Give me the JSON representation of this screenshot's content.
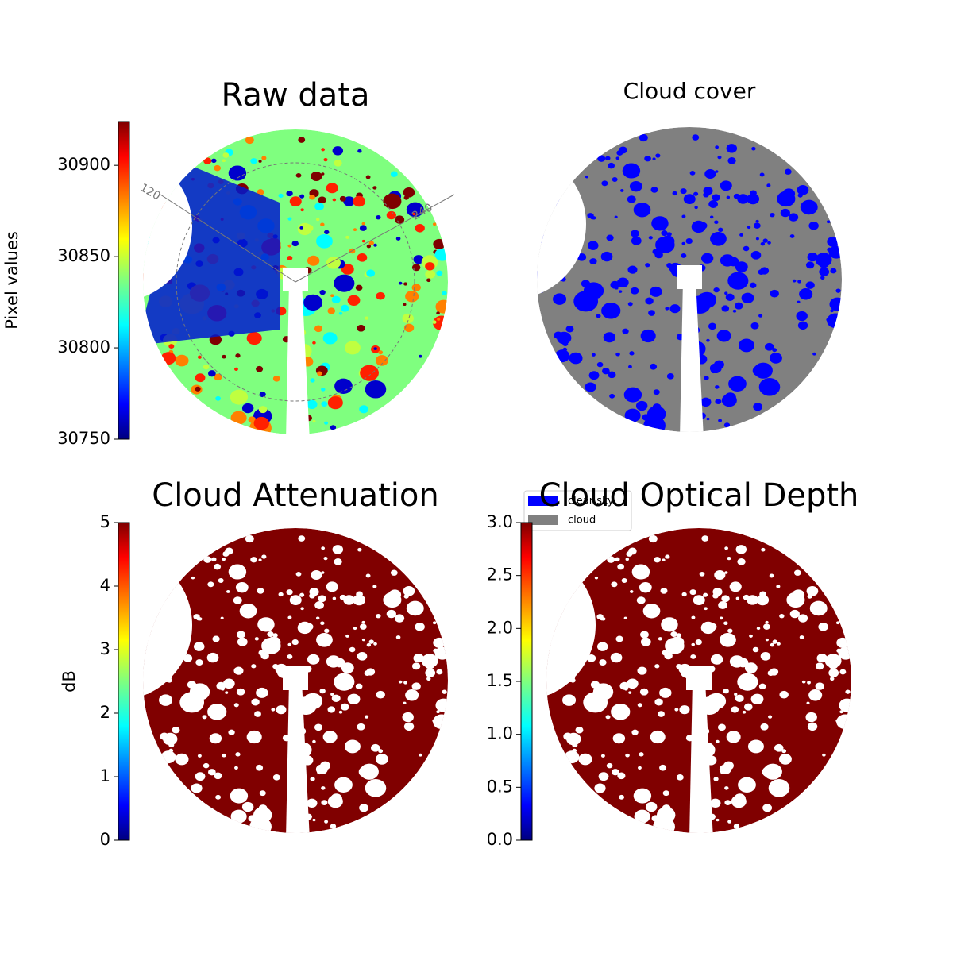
{
  "chart_data": [
    {
      "type": "image",
      "title": "Raw data",
      "colormap": "jet",
      "colorbar": {
        "label": "Pixel values",
        "lim": [
          30750,
          30924
        ],
        "ticks": [
          30750,
          30800,
          30850,
          30900
        ]
      },
      "annotations": [
        "120",
        "240"
      ]
    },
    {
      "type": "image",
      "title": "Cloud cover",
      "colormap": "binary",
      "legend": {
        "entries": [
          {
            "name": "clear sky",
            "color": "#0000ff"
          },
          {
            "name": "cloud",
            "color": "#808080"
          }
        ]
      }
    },
    {
      "type": "image",
      "title": "Cloud Attenuation",
      "colormap": "jet",
      "colorbar": {
        "label": "dB",
        "lim": [
          0,
          5
        ],
        "ticks": [
          0,
          1,
          2,
          3,
          4,
          5
        ]
      }
    },
    {
      "type": "image",
      "title": "Cloud Optical Depth",
      "colormap": "jet",
      "colorbar": {
        "lim": [
          0,
          3
        ],
        "ticks": [
          {
            "value": 0,
            "label": "0.0"
          },
          {
            "value": 0.5,
            "label": "0.5"
          },
          {
            "value": 1,
            "label": "1.0"
          },
          {
            "value": 1.5,
            "label": "1.5"
          },
          {
            "value": 2,
            "label": "2.0"
          },
          {
            "value": 2.5,
            "label": "2.5"
          },
          {
            "value": 3,
            "label": "3.0"
          }
        ]
      }
    }
  ]
}
